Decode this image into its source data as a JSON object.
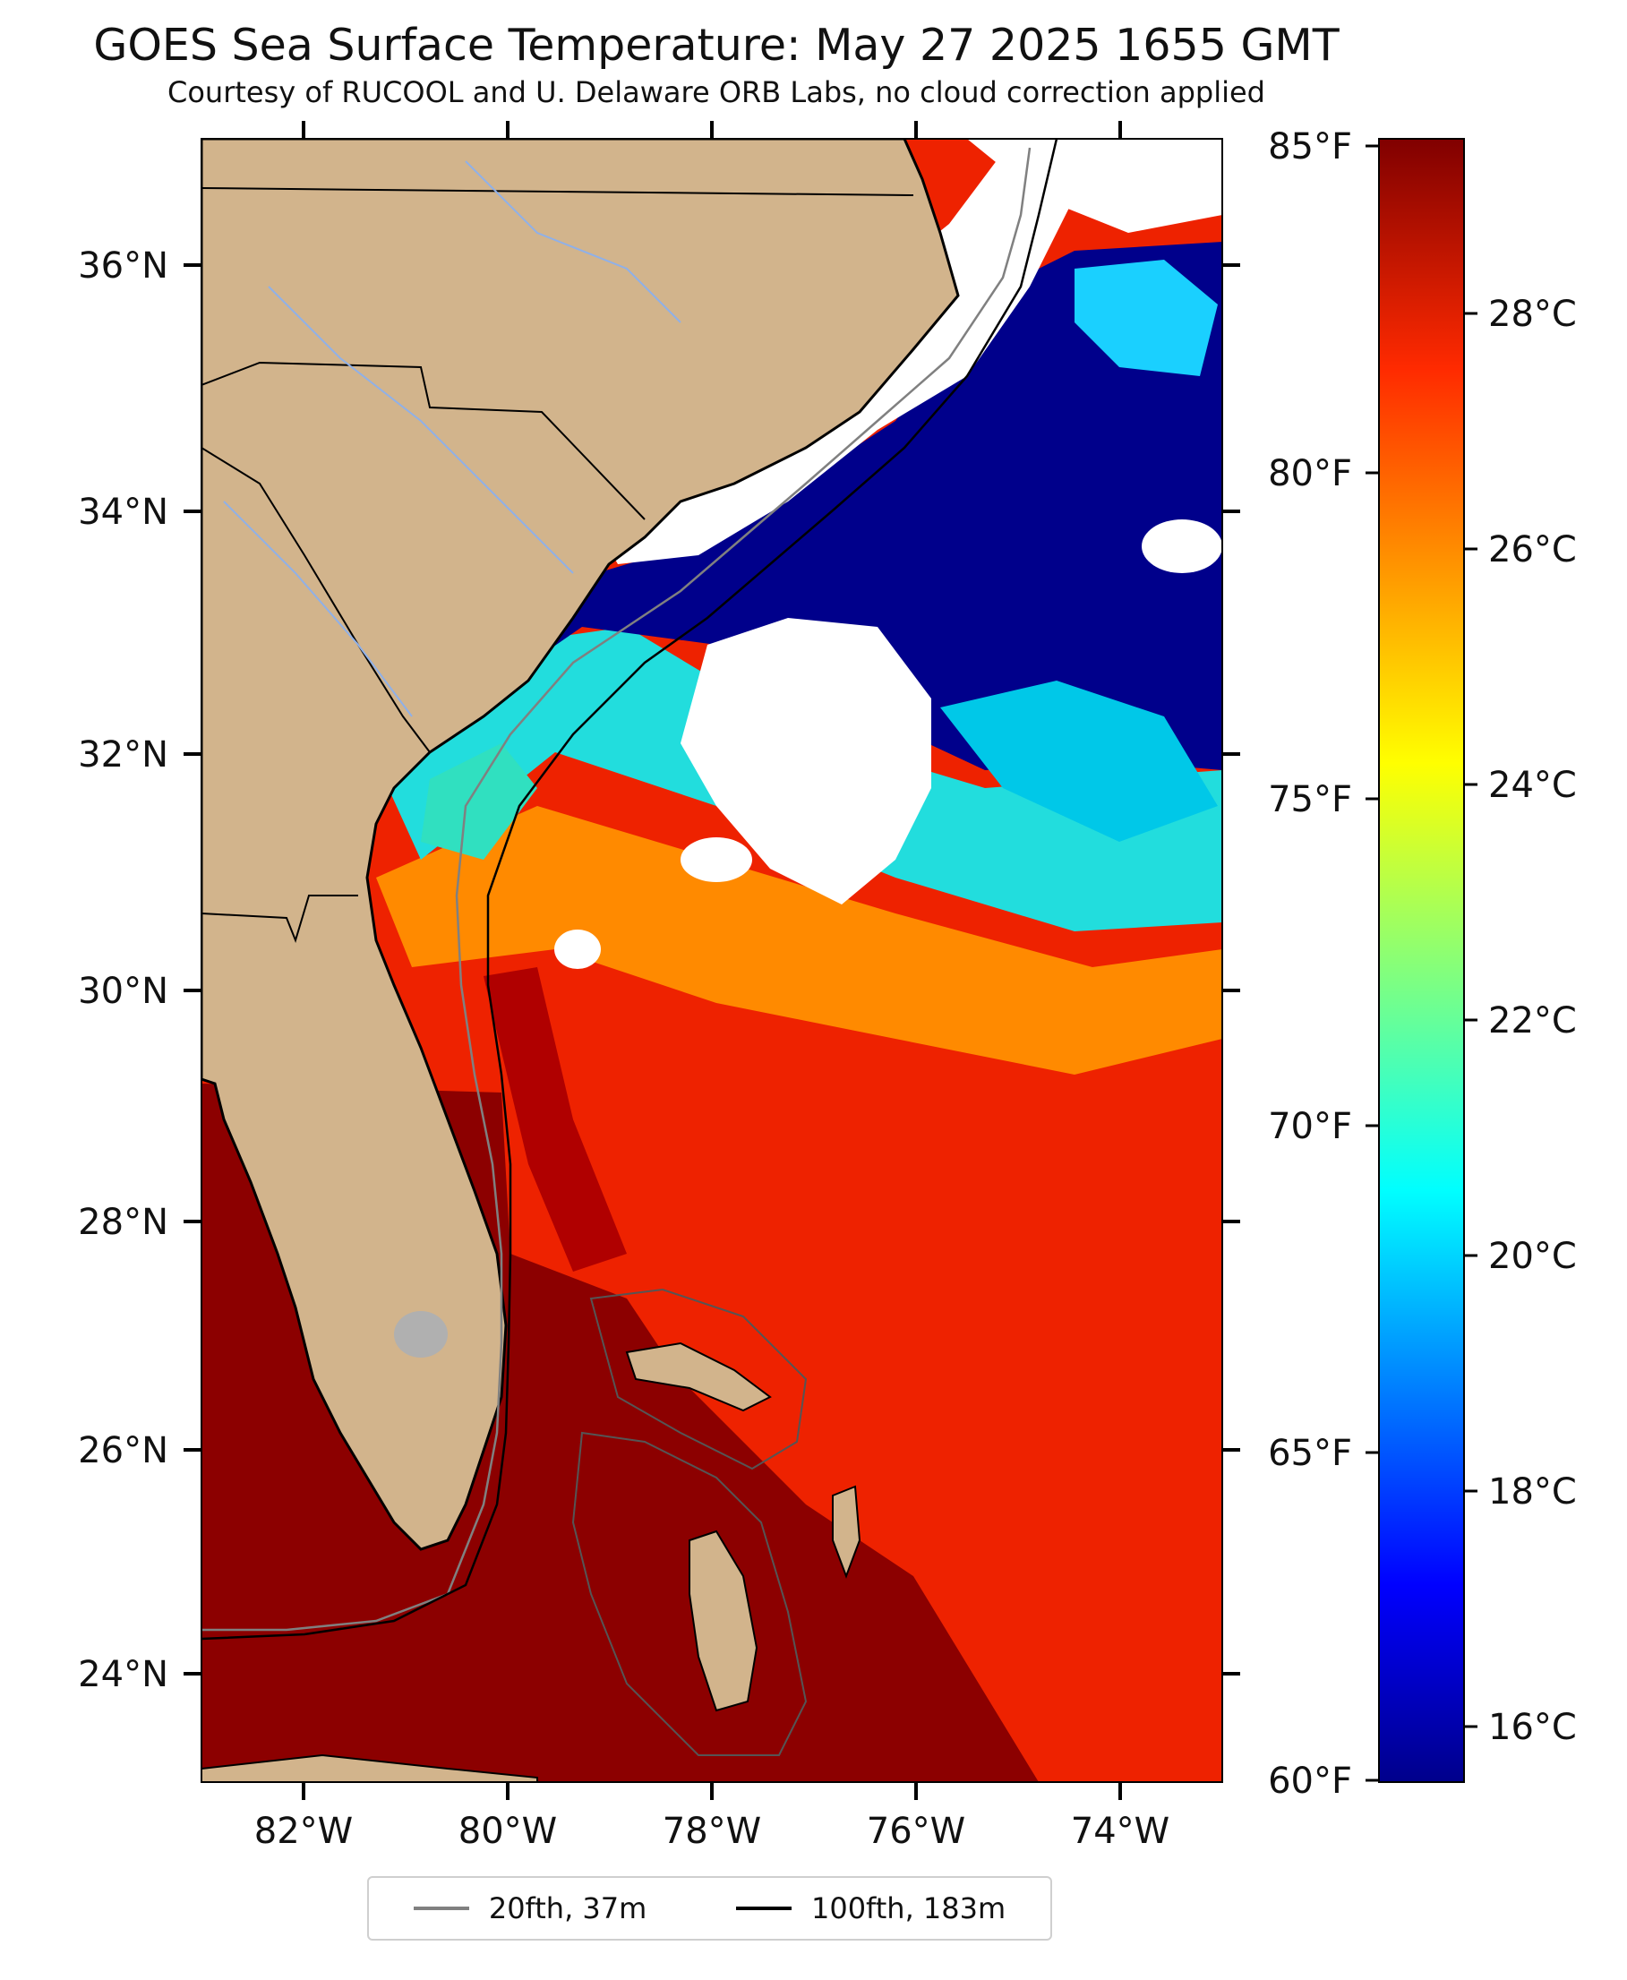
{
  "title": "GOES Sea Surface Temperature: May 27 2025 1655 GMT",
  "subtitle": "Courtesy of RUCOOL and U. Delaware ORB Labs, no cloud correction applied",
  "map": {
    "lat_labels": [
      "36°N",
      "34°N",
      "32°N",
      "30°N",
      "28°N",
      "26°N",
      "24°N"
    ],
    "lon_labels": [
      "82°W",
      "80°W",
      "78°W",
      "76°W",
      "74°W"
    ],
    "extent": {
      "lon_min": -83.0,
      "lon_max": -73.0,
      "lat_min": 23.0,
      "lat_max": 37.0
    },
    "colors": {
      "land": "#d2b48c",
      "cloud": "#ffffff",
      "cold": "#00008b",
      "warm": "#ff2a00",
      "hot": "#8b0000"
    }
  },
  "colorbar": {
    "fahrenheit_labels": [
      "85°F",
      "80°F",
      "75°F",
      "70°F",
      "65°F",
      "60°F"
    ],
    "celsius_labels": [
      "28°C",
      "26°C",
      "24°C",
      "22°C",
      "20°C",
      "18°C",
      "16°C"
    ],
    "range_f": [
      60,
      85
    ],
    "colormap": "jet"
  },
  "legend": {
    "items": [
      {
        "label": "20fth, 37m",
        "color": "#808080"
      },
      {
        "label": "100fth, 183m",
        "color": "#000000"
      }
    ]
  }
}
